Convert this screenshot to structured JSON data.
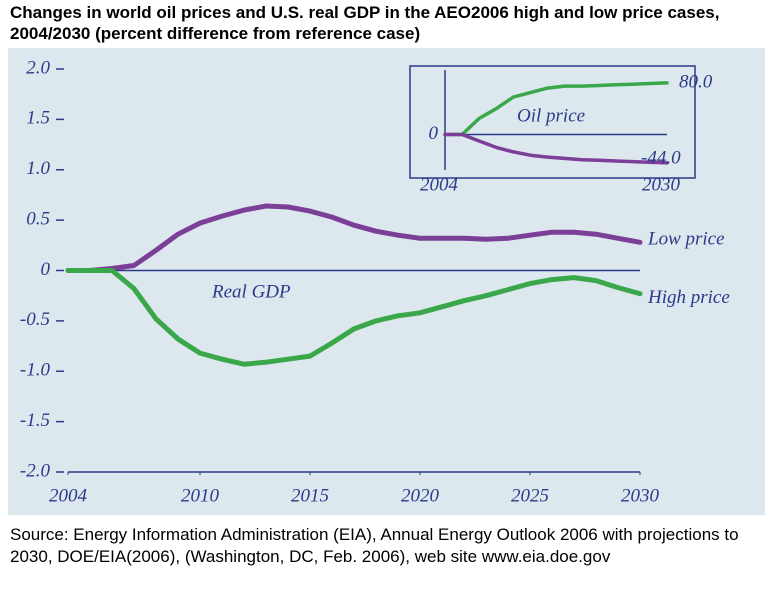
{
  "chart_data": [
    {
      "type": "line",
      "title": "Changes in world oil prices and U.S. real GDP in the AEO2006 high and low price cases, 2004/2030 (percent difference from reference case)",
      "source": "Source: Energy Information Administration (EIA), Annual Energy Outlook 2006 with projections to 2030, DOE/EIA(2006), (Washington, DC, Feb. 2006), web site www.eia.doe.gov",
      "annotation": "Real GDP",
      "x": [
        2004,
        2005,
        2006,
        2007,
        2008,
        2009,
        2010,
        2011,
        2012,
        2013,
        2014,
        2015,
        2016,
        2017,
        2018,
        2019,
        2020,
        2021,
        2022,
        2023,
        2024,
        2025,
        2026,
        2027,
        2028,
        2029,
        2030
      ],
      "series": [
        {
          "name": "Low price",
          "color": "#7b3f98",
          "values": [
            0,
            0,
            0.02,
            0.05,
            0.2,
            0.36,
            0.47,
            0.54,
            0.6,
            0.64,
            0.63,
            0.59,
            0.53,
            0.45,
            0.39,
            0.35,
            0.32,
            0.32,
            0.32,
            0.31,
            0.32,
            0.35,
            0.38,
            0.38,
            0.36,
            0.32,
            0.28
          ]
        },
        {
          "name": "High price",
          "color": "#3aa84a",
          "values": [
            0,
            0,
            0,
            -0.18,
            -0.48,
            -0.68,
            -0.82,
            -0.88,
            -0.93,
            -0.91,
            -0.88,
            -0.85,
            -0.72,
            -0.58,
            -0.5,
            -0.45,
            -0.42,
            -0.36,
            -0.3,
            -0.25,
            -0.19,
            -0.13,
            -0.09,
            -0.07,
            -0.1,
            -0.17,
            -0.23
          ]
        }
      ],
      "xlim": [
        2004,
        2030
      ],
      "xticks": [
        2004,
        2010,
        2015,
        2020,
        2025,
        2030
      ],
      "ylim": [
        -2,
        2
      ],
      "yticks": [
        {
          "value": 2,
          "label": "2.0"
        },
        1.5,
        {
          "value": 1,
          "label": "1.0"
        },
        0.5,
        0,
        -0.5,
        {
          "value": -1,
          "label": "-1.0"
        },
        -1.5,
        {
          "value": -2,
          "label": "-2.0"
        }
      ]
    },
    {
      "type": "line",
      "annotation": "Oil price",
      "x": [
        2004,
        2006,
        2008,
        2010,
        2012,
        2014,
        2016,
        2018,
        2020,
        2022,
        2024,
        2026,
        2028,
        2030
      ],
      "series": [
        {
          "color": "#3aa84a",
          "values": [
            0,
            0,
            25,
            40,
            58,
            65,
            72,
            75,
            75,
            76,
            77,
            78,
            79,
            80
          ],
          "value_labels": [
            null,
            null,
            null,
            null,
            null,
            null,
            null,
            null,
            null,
            null,
            null,
            null,
            null,
            "80.0"
          ]
        },
        {
          "color": "#7b3f98",
          "values": [
            0,
            0,
            -10,
            -20,
            -27,
            -32,
            -35,
            -37,
            -39,
            -40,
            -41,
            -42,
            -43,
            -44
          ],
          "value_labels": [
            null,
            null,
            null,
            null,
            null,
            null,
            null,
            null,
            null,
            null,
            null,
            null,
            null,
            "-44.0"
          ]
        }
      ],
      "xlim": [
        2004,
        2030
      ],
      "xticks": [
        2004,
        2030
      ],
      "ylim": [
        -55,
        100
      ],
      "yticks": [
        0
      ]
    }
  ]
}
